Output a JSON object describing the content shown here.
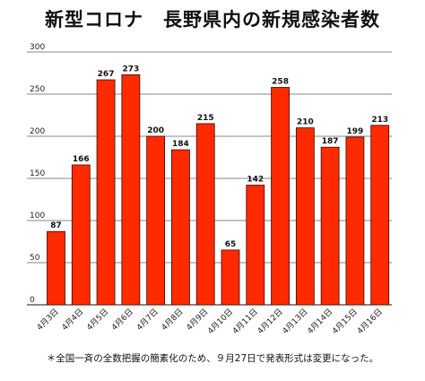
{
  "title": "新型コロナ　長野県内の新規感染者数",
  "note": "＊全国一斉の全数把握の簡素化のため、９月27日で発表形式は変更になった。",
  "colors": {
    "bar_fill": "#ff2a00",
    "bar_stroke": "#3a0a00",
    "grid": "#111111",
    "baseline": "#111111"
  },
  "chart_data": {
    "type": "bar",
    "categories": [
      "4月3日",
      "4月4日",
      "4月5日",
      "4月6日",
      "4月7日",
      "4月8日",
      "4月9日",
      "4月10日",
      "4月11日",
      "4月12日",
      "4月13日",
      "4月14日",
      "4月15日",
      "4月16日"
    ],
    "values": [
      87,
      166,
      267,
      273,
      200,
      184,
      215,
      65,
      142,
      258,
      210,
      187,
      199,
      213
    ],
    "ylim": [
      0,
      300
    ],
    "yticks": [
      0,
      50,
      100,
      150,
      200,
      250,
      300
    ],
    "grid": true,
    "data_labels": true
  }
}
